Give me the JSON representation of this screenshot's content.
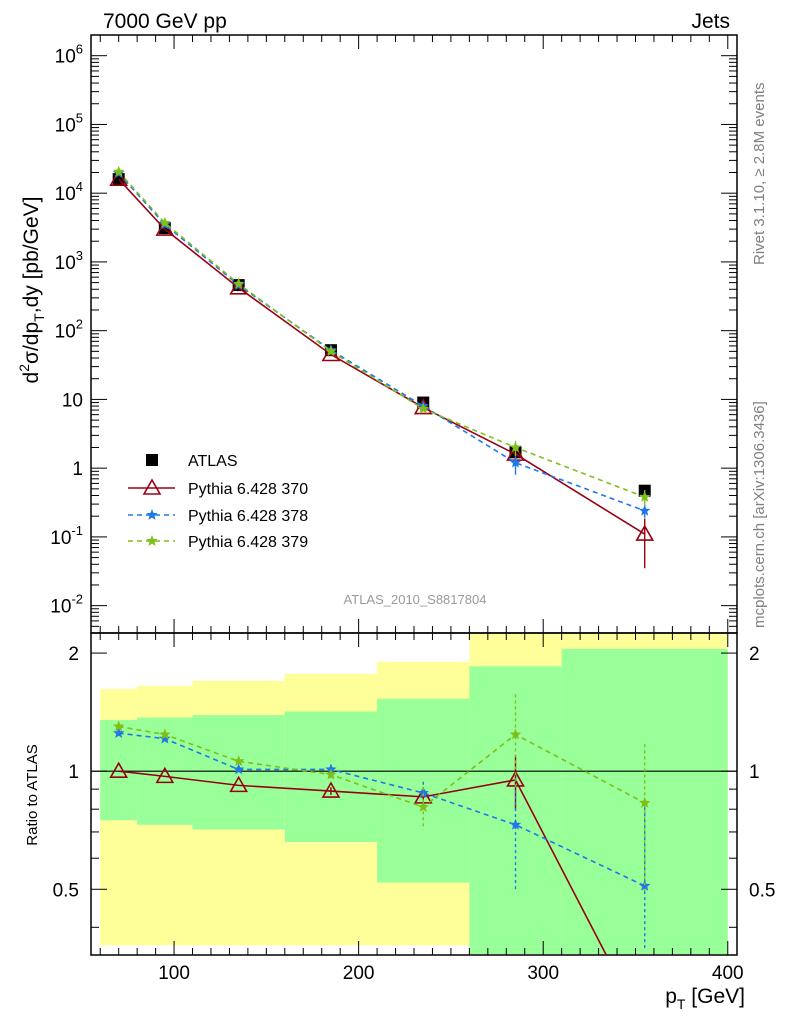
{
  "header": {
    "left_title": "7000 GeV pp",
    "right_title": "Jets",
    "side_label_top": "Rivet 3.1.10, ≥ 2.8M events",
    "side_label_bottom": "mcplots.cern.ch [arXiv:1306.3436]",
    "analysis_label": "ATLAS_2010_S8817804"
  },
  "colors": {
    "atlas": "#000000",
    "p370": "#990012",
    "p378": "#1f78e6",
    "p379": "#7fbf1a",
    "band_yellow": "#ffff99",
    "band_green": "#99ff99"
  },
  "chart_data": [
    {
      "type": "line",
      "title": "7000 GeV pp",
      "ylabel": "d²σ/dp_T,dy [pb/GeV]",
      "xlabel": "p_T [GeV]",
      "yscale": "log",
      "ylim": [
        0.004,
        2000000
      ],
      "xlim": [
        55,
        405
      ],
      "y_ticks": [
        "10^-2",
        "10^-1",
        "1",
        "10",
        "10^2",
        "10^3",
        "10^4",
        "10^5",
        "10^6"
      ],
      "legend_position": "bottom-left",
      "x": [
        70,
        95,
        135,
        185,
        235,
        285,
        355
      ],
      "series": [
        {
          "name": "ATLAS",
          "values": [
            16000,
            3100,
            460,
            52,
            9.0,
            1.7,
            0.47
          ],
          "marker": "square",
          "errors": [
            0,
            0,
            0,
            0,
            0,
            0.2,
            0.06
          ]
        },
        {
          "name": "Pythia 6.428 370",
          "values": [
            16000,
            3000,
            420,
            45,
            7.6,
            1.6,
            0.11
          ],
          "marker": "triangle",
          "errors": [
            0,
            0,
            0,
            2,
            0.5,
            0.3,
            0.075
          ]
        },
        {
          "name": "Pythia 6.428 378",
          "values": [
            19500,
            3500,
            460,
            52,
            8.0,
            1.2,
            0.24
          ],
          "marker": "star",
          "errors": [
            0,
            0,
            0,
            2,
            0.6,
            0.4,
            0.05
          ]
        },
        {
          "name": "Pythia 6.428 379",
          "values": [
            20500,
            3700,
            480,
            50,
            7.3,
            2.0,
            0.38
          ],
          "marker": "star",
          "errors": [
            0,
            0,
            0,
            2,
            0.5,
            0.5,
            0.1
          ]
        }
      ]
    },
    {
      "type": "line",
      "ylabel": "Ratio to ATLAS",
      "xlabel": "p_T [GeV]",
      "ylim": [
        0.34,
        2.25
      ],
      "xlim": [
        55,
        405
      ],
      "x_ticks": [
        100,
        200,
        300,
        400
      ],
      "y_ticks": [
        0.5,
        1,
        2
      ],
      "x": [
        70,
        95,
        135,
        185,
        235,
        285,
        355
      ],
      "bands": {
        "edges": [
          60,
          80,
          110,
          160,
          210,
          260,
          310,
          400
        ],
        "yellow_low": [
          0.36,
          0.36,
          0.36,
          0.36,
          0.36,
          0.36,
          0.36
        ],
        "yellow_high": [
          1.62,
          1.65,
          1.7,
          1.77,
          1.9,
          2.25,
          2.25
        ],
        "green_low": [
          0.75,
          0.73,
          0.71,
          0.66,
          0.52,
          0.34,
          0.34
        ],
        "green_high": [
          1.35,
          1.37,
          1.39,
          1.42,
          1.53,
          1.85,
          2.05
        ]
      },
      "series": [
        {
          "name": "Pythia 6.428 370",
          "values": [
            1.0,
            0.97,
            0.92,
            0.89,
            0.86,
            0.95,
            0.22
          ],
          "errors": [
            0,
            0,
            0,
            0.02,
            0.05,
            0.15,
            0
          ]
        },
        {
          "name": "Pythia 6.428 378",
          "values": [
            1.25,
            1.21,
            1.01,
            1.01,
            0.88,
            0.73,
            0.51
          ],
          "errors": [
            0,
            0,
            0,
            0.02,
            0.06,
            0.23,
            0.3
          ]
        },
        {
          "name": "Pythia 6.428 379",
          "values": [
            1.3,
            1.24,
            1.06,
            0.98,
            0.81,
            1.24,
            0.83
          ],
          "errors": [
            0,
            0,
            0,
            0.02,
            0.1,
            0.33,
            0.34
          ]
        }
      ]
    }
  ]
}
